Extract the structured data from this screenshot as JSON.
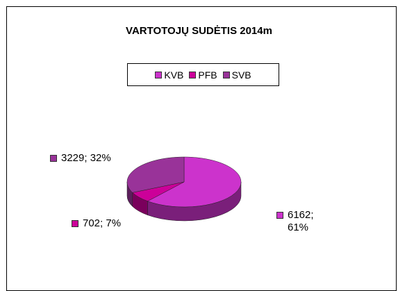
{
  "chart_data": {
    "type": "pie",
    "title": "VARTOTOJŲ SUDĖTIS 2014m",
    "categories": [
      "KVB",
      "PFB",
      "SVB"
    ],
    "values": [
      6162,
      702,
      3229
    ],
    "value_labels": [
      "6162; 61%",
      "702; 7%",
      "3229; 32%"
    ],
    "colors": [
      "#cc33cc",
      "#cc0099",
      "#993399"
    ],
    "legend": "top"
  }
}
